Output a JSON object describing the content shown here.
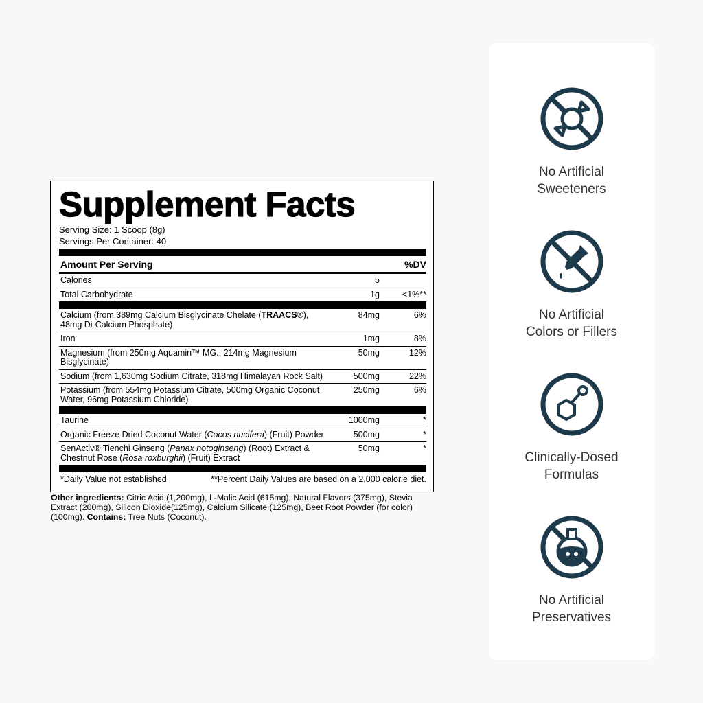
{
  "label": {
    "title": "Supplement Facts",
    "serving_size": "Serving Size: 1 Scoop (8g)",
    "servings_per_container": "Servings Per Container: 40",
    "header_amount": "Amount Per Serving",
    "header_dv": "%DV",
    "macros": [
      {
        "name": "Calories",
        "amount": "5",
        "dv": ""
      },
      {
        "name": "Total Carbohydrate",
        "amount": "1g",
        "dv": "<1%**"
      }
    ],
    "minerals": [
      {
        "name": "Calcium (from 389mg Calcium Bisglycinate Chelate (TRAACS®), 48mg Di-Calcium Phosphate)",
        "amount": "84mg",
        "dv": "6%"
      },
      {
        "name": "Iron",
        "amount": "1mg",
        "dv": "8%"
      },
      {
        "name": "Magnesium (from 250mg Aquamin™ MG., 214mg Magnesium Bisglycinate)",
        "amount": "50mg",
        "dv": "12%"
      },
      {
        "name": "Sodium (from 1,630mg Sodium Citrate, 318mg Himalayan Rock Salt)",
        "amount": "500mg",
        "dv": "22%"
      },
      {
        "name": "Potassium (from 554mg Potassium Citrate, 500mg Organic Coconut Water, 96mg Potassium Chloride)",
        "amount": "250mg",
        "dv": "6%"
      }
    ],
    "others": [
      {
        "name": "Taurine",
        "amount": "1000mg",
        "dv": "*"
      },
      {
        "name": "Organic Freeze Dried Coconut Water (Cocos nucifera) (Fruit) Powder",
        "amount": "500mg",
        "dv": "*"
      },
      {
        "name": "SenActiv® Tienchi Ginseng (Panax notoginseng) (Root) Extract & Chestnut Rose (Rosa roxburghii) (Fruit) Extract",
        "amount": "50mg",
        "dv": "*"
      }
    ],
    "footnote_left": "*Daily Value not established",
    "footnote_right": "**Percent Daily Values are based on a 2,000 calorie diet."
  },
  "other_ingredients": {
    "label": "Other ingredients:",
    "text": " Citric Acid (1,200mg), L-Malic Acid (615mg), Natural Flavors (375mg), Stevia Extract (200mg), Silicon Dioxide(125mg), Calcium Silicate (125mg), Beet Root Powder (for color) (100mg).  ",
    "contains_label": "Contains:",
    "contains_text": " Tree Nuts (Coconut)."
  },
  "features": [
    {
      "icon": "no-candy-icon",
      "line1": "No Artificial",
      "line2": "Sweeteners"
    },
    {
      "icon": "no-dropper-icon",
      "line1": "No Artificial",
      "line2": "Colors or Fillers"
    },
    {
      "icon": "molecule-icon",
      "line1": "Clinically-Dosed",
      "line2": "Formulas"
    },
    {
      "icon": "no-flask-icon",
      "line1": "No Artificial",
      "line2": "Preservatives"
    }
  ],
  "colors": {
    "icon": "#1d3a4a",
    "background": "#f7f8fa"
  }
}
